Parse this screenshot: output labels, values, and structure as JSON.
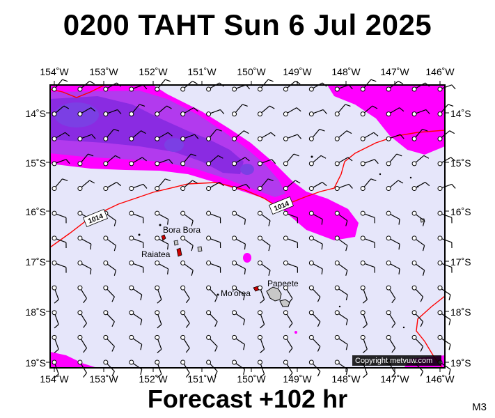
{
  "title": "0200 TAHT Sun 6 Jul 2025",
  "footer": "Forecast +102 hr",
  "model_tag": "M3",
  "copyright": "Copyright metvuw.com",
  "colors": {
    "background": "#e6e6fa",
    "rain_light": "#ff00ff",
    "rain_medium": "#b23aee",
    "rain_heavy": "#8a2be2",
    "rain_extreme": "#7b3fe4",
    "isobar": "#ff0000"
  },
  "axes": {
    "top_labels": [
      "154˚W",
      "153˚W",
      "152˚W",
      "151˚W",
      "150˚W",
      "149˚W",
      "148˚W",
      "147˚W",
      "146˚W"
    ],
    "bottom_labels": [
      "154˚W",
      "153˚W",
      "152˚W",
      "151˚W",
      "150˚W",
      "149˚W",
      "148˚W",
      "147˚W",
      "146˚W"
    ],
    "left_labels": [
      "14˚S",
      "15˚S",
      "16˚S",
      "17˚S",
      "18˚S",
      "19˚S"
    ],
    "right_labels": [
      "14˚S",
      "15˚S",
      "16˚S",
      "17˚S",
      "18˚S",
      "19˚S"
    ]
  },
  "isobars": [
    {
      "label": "1014"
    },
    {
      "label": "1014"
    }
  ],
  "places": [
    {
      "name": "Bora Bora"
    },
    {
      "name": "Raiatea"
    },
    {
      "name": "Mo'orea"
    },
    {
      "name": "Papeete"
    }
  ]
}
